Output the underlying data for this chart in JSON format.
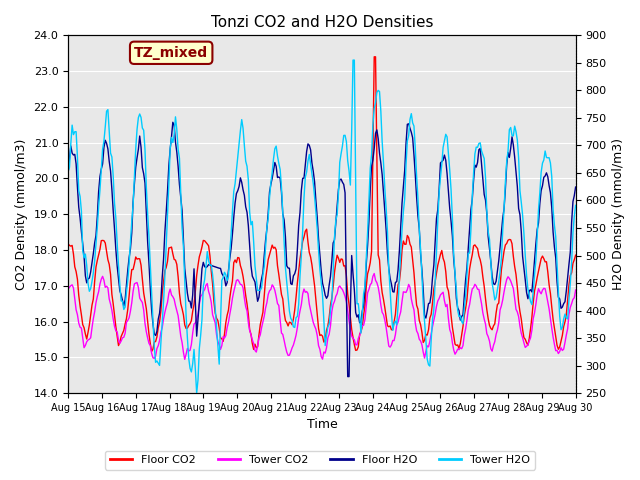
{
  "title": "Tonzi CO2 and H2O Densities",
  "xlabel": "Time",
  "ylabel_left": "CO2 Density (mmol/m3)",
  "ylabel_right": "H2O Density (mmol/m3)",
  "xlim": [
    0,
    360
  ],
  "ylim_left": [
    14.0,
    24.0
  ],
  "ylim_right": [
    250,
    900
  ],
  "yticks_left": [
    14.0,
    15.0,
    16.0,
    17.0,
    18.0,
    19.0,
    20.0,
    21.0,
    22.0,
    23.0,
    24.0
  ],
  "yticks_right": [
    250,
    300,
    350,
    400,
    450,
    500,
    550,
    600,
    650,
    700,
    750,
    800,
    850,
    900
  ],
  "xtick_labels": [
    "Aug 15",
    "Aug 16",
    "Aug 17",
    "Aug 18",
    "Aug 19",
    "Aug 20",
    "Aug 21",
    "Aug 22",
    "Aug 23",
    "Aug 24",
    "Aug 25",
    "Aug 26",
    "Aug 27",
    "Aug 28",
    "Aug 29",
    "Aug 30"
  ],
  "xtick_positions": [
    0,
    24,
    48,
    72,
    96,
    120,
    144,
    168,
    192,
    216,
    240,
    264,
    288,
    312,
    336,
    360
  ],
  "annotation_text": "TZ_mixed",
  "annotation_color": "#8B0000",
  "annotation_bg": "#FFFFCC",
  "colors": {
    "floor_co2": "#FF0000",
    "tower_co2": "#FF00FF",
    "floor_h2o": "#00008B",
    "tower_h2o": "#00CCFF"
  },
  "legend_labels": [
    "Floor CO2",
    "Tower CO2",
    "Floor H2O",
    "Tower H2O"
  ],
  "bg_color": "#E8E8E8",
  "grid_color": "#FFFFFF"
}
